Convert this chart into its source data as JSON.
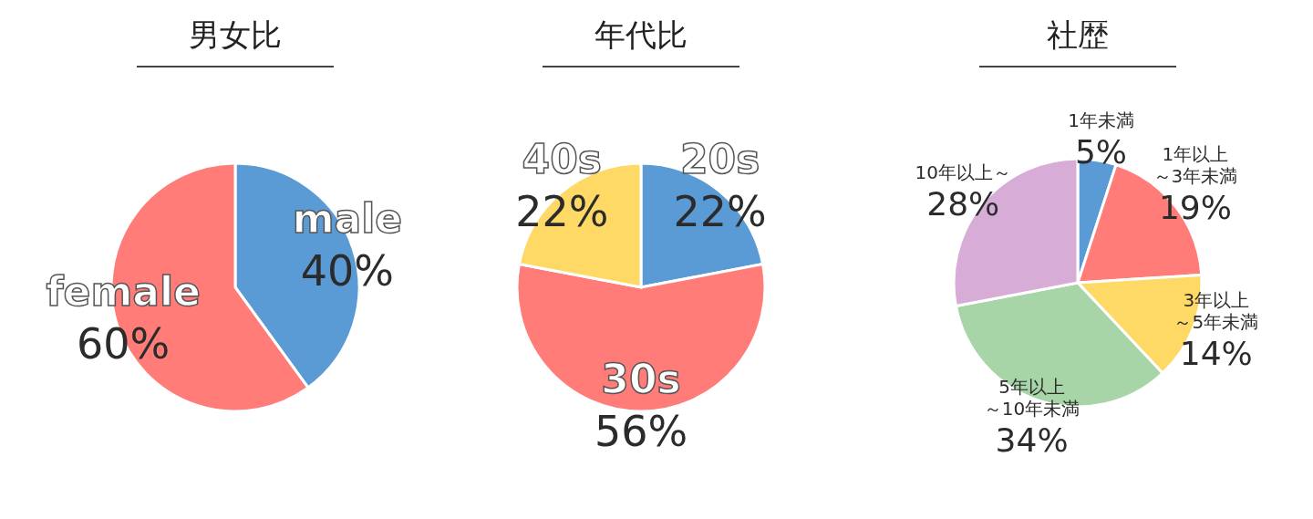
{
  "chart_data": [
    {
      "type": "pie",
      "title": "男女比",
      "categories": [
        "male",
        "female"
      ],
      "values": [
        40,
        60
      ],
      "colors": [
        "#5b9bd5",
        "#ff7c78"
      ],
      "value_labels": [
        "40%",
        "60%"
      ]
    },
    {
      "type": "pie",
      "title": "年代比",
      "categories": [
        "20s",
        "30s",
        "40s"
      ],
      "values": [
        22,
        56,
        22
      ],
      "colors": [
        "#5b9bd5",
        "#ff7c78",
        "#fed966"
      ],
      "value_labels": [
        "22%",
        "56%",
        "22%"
      ]
    },
    {
      "type": "pie",
      "title": "社歴",
      "categories": [
        "1年未満",
        "1年以上～3年未満",
        "3年以上～5年未満",
        "5年以上～10年未満",
        "10年以上～"
      ],
      "values": [
        5,
        19,
        14,
        34,
        28
      ],
      "colors": [
        "#5b9bd5",
        "#ff7c78",
        "#fed966",
        "#a8d5a8",
        "#d7acd7"
      ],
      "value_labels": [
        "5%",
        "19%",
        "14%",
        "34%",
        "28%"
      ]
    }
  ]
}
